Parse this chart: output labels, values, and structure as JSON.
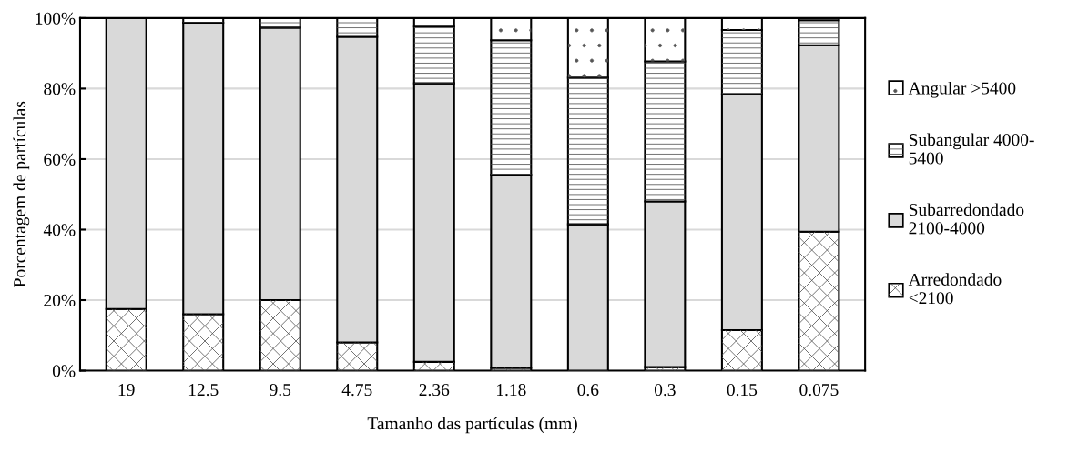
{
  "chart_data": {
    "type": "bar",
    "stacked": true,
    "xlabel": "Tamanho das partículas (mm)",
    "ylabel": "Porcentagem de partículas",
    "categories": [
      "19",
      "12.5",
      "9.5",
      "4.75",
      "2.36",
      "1.18",
      "0.6",
      "0.3",
      "0.15",
      "0.075"
    ],
    "series": [
      {
        "name": "Arredondado\n<2100",
        "color": "#ffffff",
        "values": [
          17.5,
          16,
          20,
          8,
          2.5,
          0.8,
          0,
          1,
          11.5,
          39.4
        ]
      },
      {
        "name": "Subarredondado\n2100-4000",
        "color": "#d9d9d9",
        "values": [
          82.5,
          82.7,
          77.3,
          86.7,
          79,
          54.8,
          41.5,
          47,
          66.9,
          52.9
        ]
      },
      {
        "name": "Subangular 4000-\n5400",
        "color": "#ffffff",
        "values": [
          0,
          1.3,
          2.7,
          5.3,
          16.1,
          38.1,
          41.6,
          39.7,
          18.2,
          7.1
        ]
      },
      {
        "name": "Angular >5400",
        "color": "#ffffff",
        "values": [
          0,
          0,
          0,
          0,
          2.4,
          6.3,
          16.9,
          12.3,
          3.4,
          0.6
        ]
      }
    ],
    "ylim": [
      0,
      100
    ],
    "yticks": [
      {
        "value": 0,
        "label": "0%"
      },
      {
        "value": 20,
        "label": "20%"
      },
      {
        "value": 40,
        "label": "40%"
      },
      {
        "value": 60,
        "label": "60%"
      },
      {
        "value": 80,
        "label": "80%"
      },
      {
        "value": 100,
        "label": "100%"
      }
    ],
    "grid": "y",
    "legend": "right"
  }
}
